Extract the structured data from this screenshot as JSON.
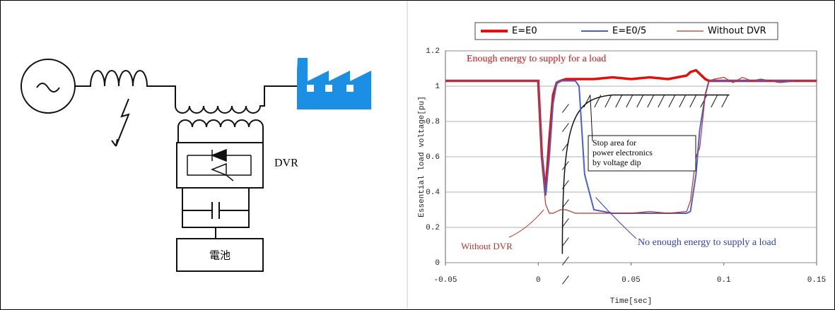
{
  "diagram": {
    "dvr_label": "DVR",
    "battery_label": "電池"
  },
  "chart_data": {
    "type": "line",
    "x": [
      -0.05,
      0,
      0.002,
      0.004,
      0.006,
      0.008,
      0.01,
      0.012,
      0.015,
      0.02,
      0.022,
      0.025,
      0.03,
      0.04,
      0.05,
      0.06,
      0.07,
      0.08,
      0.082,
      0.085,
      0.087,
      0.09,
      0.092,
      0.095,
      0.1,
      0.105,
      0.11,
      0.115,
      0.12,
      0.13,
      0.14,
      0.15
    ],
    "series": [
      {
        "name": "E=E0",
        "color": "#e01010",
        "values": [
          1.03,
          1.03,
          0.6,
          0.4,
          0.7,
          0.95,
          1.02,
          1.03,
          1.04,
          1.04,
          1.04,
          1.04,
          1.04,
          1.05,
          1.04,
          1.05,
          1.04,
          1.06,
          1.08,
          1.09,
          1.07,
          1.04,
          1.03,
          1.03,
          1.03,
          1.03,
          1.03,
          1.03,
          1.03,
          1.03,
          1.03,
          1.03
        ]
      },
      {
        "name": "E=E0/5",
        "color": "#4a5fd0",
        "values": [
          1.03,
          1.03,
          0.6,
          0.38,
          0.6,
          0.9,
          1.02,
          1.03,
          1.03,
          1.03,
          1.0,
          0.5,
          0.3,
          0.28,
          0.28,
          0.28,
          0.28,
          0.28,
          0.29,
          0.5,
          0.75,
          0.95,
          1.03,
          1.03,
          1.03,
          1.03,
          1.03,
          1.03,
          1.03,
          1.03,
          1.03,
          1.03
        ]
      },
      {
        "name": "Without DVR",
        "color": "#c0302a",
        "values": [
          1.03,
          1.03,
          0.55,
          0.33,
          0.28,
          0.28,
          0.29,
          0.3,
          0.3,
          0.28,
          0.28,
          0.28,
          0.28,
          0.28,
          0.28,
          0.29,
          0.28,
          0.29,
          0.35,
          0.6,
          0.65,
          0.95,
          1.03,
          1.04,
          1.05,
          1.02,
          1.05,
          1.03,
          1.04,
          1.02,
          1.03,
          1.03
        ]
      }
    ],
    "xlim": [
      -0.05,
      0.15
    ],
    "xticks": [
      -0.05,
      0,
      0.05,
      0.1,
      0.15
    ],
    "ylim": [
      0,
      1.2
    ],
    "yticks": [
      0,
      0.2,
      0.4,
      0.6,
      0.8,
      1,
      1.2
    ],
    "grid": true,
    "xlabel": "Time[sec]",
    "ylabel": "Essential load voltage[pu]",
    "annotations": {
      "enough": "Enough energy to supply for a load",
      "stop_area": [
        "Stop area for",
        "power electronics",
        "by voltage dip"
      ],
      "without": "Without DVR",
      "no_enough": "No enough energy to supply a load"
    }
  }
}
